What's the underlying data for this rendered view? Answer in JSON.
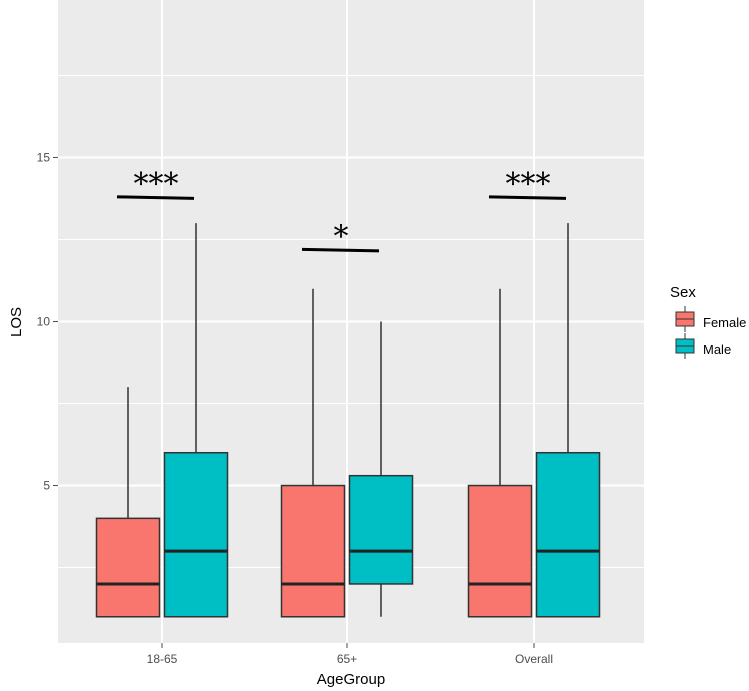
{
  "chart_data": {
    "type": "boxplot",
    "xlabel": "AgeGroup",
    "ylabel": "LOS",
    "categories": [
      "18-65",
      "65+",
      "Overall"
    ],
    "y_ticks": [
      5,
      10,
      15
    ],
    "ylim": [
      0.2,
      19.8
    ],
    "grid": true,
    "legend": {
      "title": "Sex",
      "position": "right",
      "entries": [
        {
          "name": "Female",
          "color": "#F8766D"
        },
        {
          "name": "Male",
          "color": "#00BFC4"
        }
      ]
    },
    "series": [
      {
        "name": "Female",
        "color": "#F8766D",
        "boxes": [
          {
            "category": "18-65",
            "whisker_low": 1,
            "q1": 1,
            "median": 2,
            "q3": 4,
            "whisker_high": 8
          },
          {
            "category": "65+",
            "whisker_low": 1,
            "q1": 1,
            "median": 2,
            "q3": 5,
            "whisker_high": 11
          },
          {
            "category": "Overall",
            "whisker_low": 1,
            "q1": 1,
            "median": 2,
            "q3": 5,
            "whisker_high": 11
          }
        ]
      },
      {
        "name": "Male",
        "color": "#00BFC4",
        "boxes": [
          {
            "category": "18-65",
            "whisker_low": 1,
            "q1": 1,
            "median": 3,
            "q3": 6,
            "whisker_high": 13
          },
          {
            "category": "65+",
            "whisker_low": 1,
            "q1": 2,
            "median": 3,
            "q3": 5.3,
            "whisker_high": 10
          },
          {
            "category": "Overall",
            "whisker_low": 1,
            "q1": 1,
            "median": 3,
            "q3": 6,
            "whisker_high": 13
          }
        ]
      }
    ],
    "annotations": [
      {
        "category": "18-65",
        "label": "***",
        "y": 13.8
      },
      {
        "category": "65+",
        "label": "*",
        "y": 12.2
      },
      {
        "category": "Overall",
        "label": "***",
        "y": 13.8
      }
    ],
    "colors": {
      "panel_background": "#EBEBEB",
      "grid_line": "#FFFFFF",
      "box_outline": "#333333"
    }
  }
}
